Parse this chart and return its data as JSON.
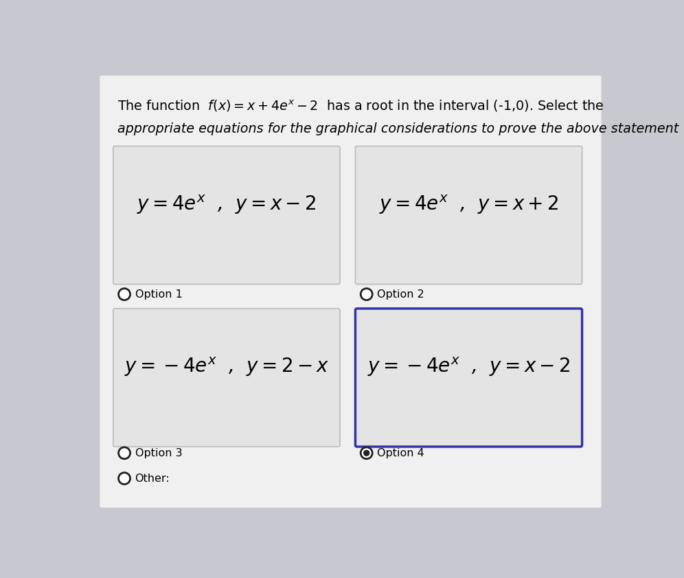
{
  "background_color": "#c8c8d0",
  "content_bg": "#f0f0f0",
  "box_bg": "#e4e4e4",
  "box_border_normal": "#bbbbbb",
  "box_border_selected": "#3333aa",
  "title_line1": "The function  $f(x) = x+4e^x-2$  has a root in the interval (-1,0). Select the",
  "title_line2": "appropriate equations for the graphical considerations to prove the above statement",
  "options": [
    {
      "id": 1,
      "text": "$y=4e^x$  ,  $y=x-2$",
      "label": "Option 1",
      "selected": false
    },
    {
      "id": 2,
      "text": "$y=4e^x$  ,  $y=x+2$",
      "label": "Option 2",
      "selected": false
    },
    {
      "id": 3,
      "text": "$y=-4e^x$  ,  $y=2-x$",
      "label": "Option 3",
      "selected": false
    },
    {
      "id": 4,
      "text": "$y=-4e^x$  ,  $y=x-2$",
      "label": "Option 4",
      "selected": true
    }
  ]
}
